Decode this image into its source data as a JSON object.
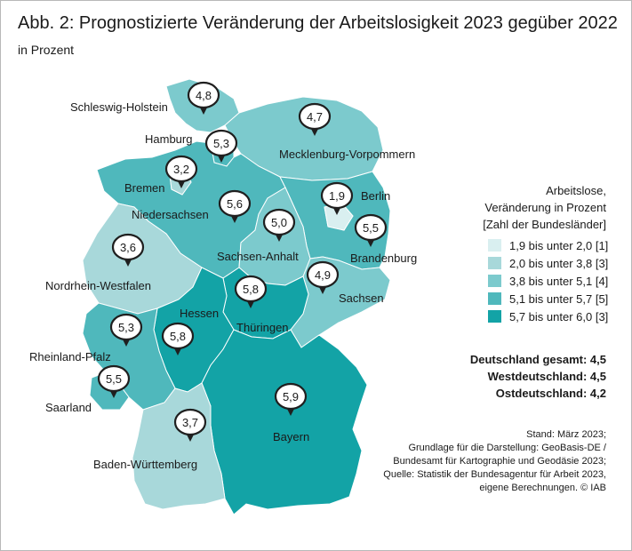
{
  "title": "Abb. 2: Prognostizierte Veränderung der Arbeitslosigkeit 2023 gegüber 2022",
  "subtitle": "in Prozent",
  "legend": {
    "heading": [
      "Arbeitslose,",
      "Veränderung in Prozent",
      "[Zahl der Bundesländer]"
    ],
    "classes": [
      {
        "label": "1,9 bis unter 2,0 [1]",
        "color": "#d9eff0"
      },
      {
        "label": "2,0 bis unter 3,8 [3]",
        "color": "#a8d8da"
      },
      {
        "label": "3,8 bis unter 5,1 [4]",
        "color": "#7ccacd"
      },
      {
        "label": "5,1 bis unter 5,7 [5]",
        "color": "#4fb8bc"
      },
      {
        "label": "5,7 bis unter 6,0 [3]",
        "color": "#13a3a6"
      }
    ]
  },
  "totals": {
    "deutschland": "Deutschland gesamt: 4,5",
    "west": "Westdeutschland: 4,5",
    "ost": "Ostdeutschland: 4,2"
  },
  "source": [
    "Stand: März 2023;",
    "Grundlage für die Darstellung: GeoBasis-DE /",
    "Bundesamt für Kartographie und Geodäsie 2023;",
    "Quelle: Statistik der Bundesagentur für Arbeit 2023,",
    "eigene Berechnungen. © IAB"
  ],
  "states": [
    {
      "name": "Schleswig-Holstein",
      "value": "4,8",
      "class": 2
    },
    {
      "name": "Hamburg",
      "value": "5,3",
      "class": 3
    },
    {
      "name": "Mecklenburg-Vorpommern",
      "value": "4,7",
      "class": 2
    },
    {
      "name": "Bremen",
      "value": "3,2",
      "class": 1
    },
    {
      "name": "Berlin",
      "value": "1,9",
      "class": 0
    },
    {
      "name": "Niedersachsen",
      "value": "5,6",
      "class": 3
    },
    {
      "name": "Sachsen-Anhalt",
      "value": "5,0",
      "class": 2
    },
    {
      "name": "Brandenburg",
      "value": "5,5",
      "class": 3
    },
    {
      "name": "Nordrhein-Westfalen",
      "value": "3,6",
      "class": 1
    },
    {
      "name": "Sachsen",
      "value": "4,9",
      "class": 2
    },
    {
      "name": "Hessen",
      "value": "5,8",
      "class": 4
    },
    {
      "name": "Thüringen",
      "value": "5,8",
      "class": 4
    },
    {
      "name": "Rheinland-Pfalz",
      "value": "5,3",
      "class": 3
    },
    {
      "name": "Saarland",
      "value": "5,5",
      "class": 3
    },
    {
      "name": "Bayern",
      "value": "5,9",
      "class": 4
    },
    {
      "name": "Baden-Württemberg",
      "value": "3,7",
      "class": 1
    }
  ]
}
